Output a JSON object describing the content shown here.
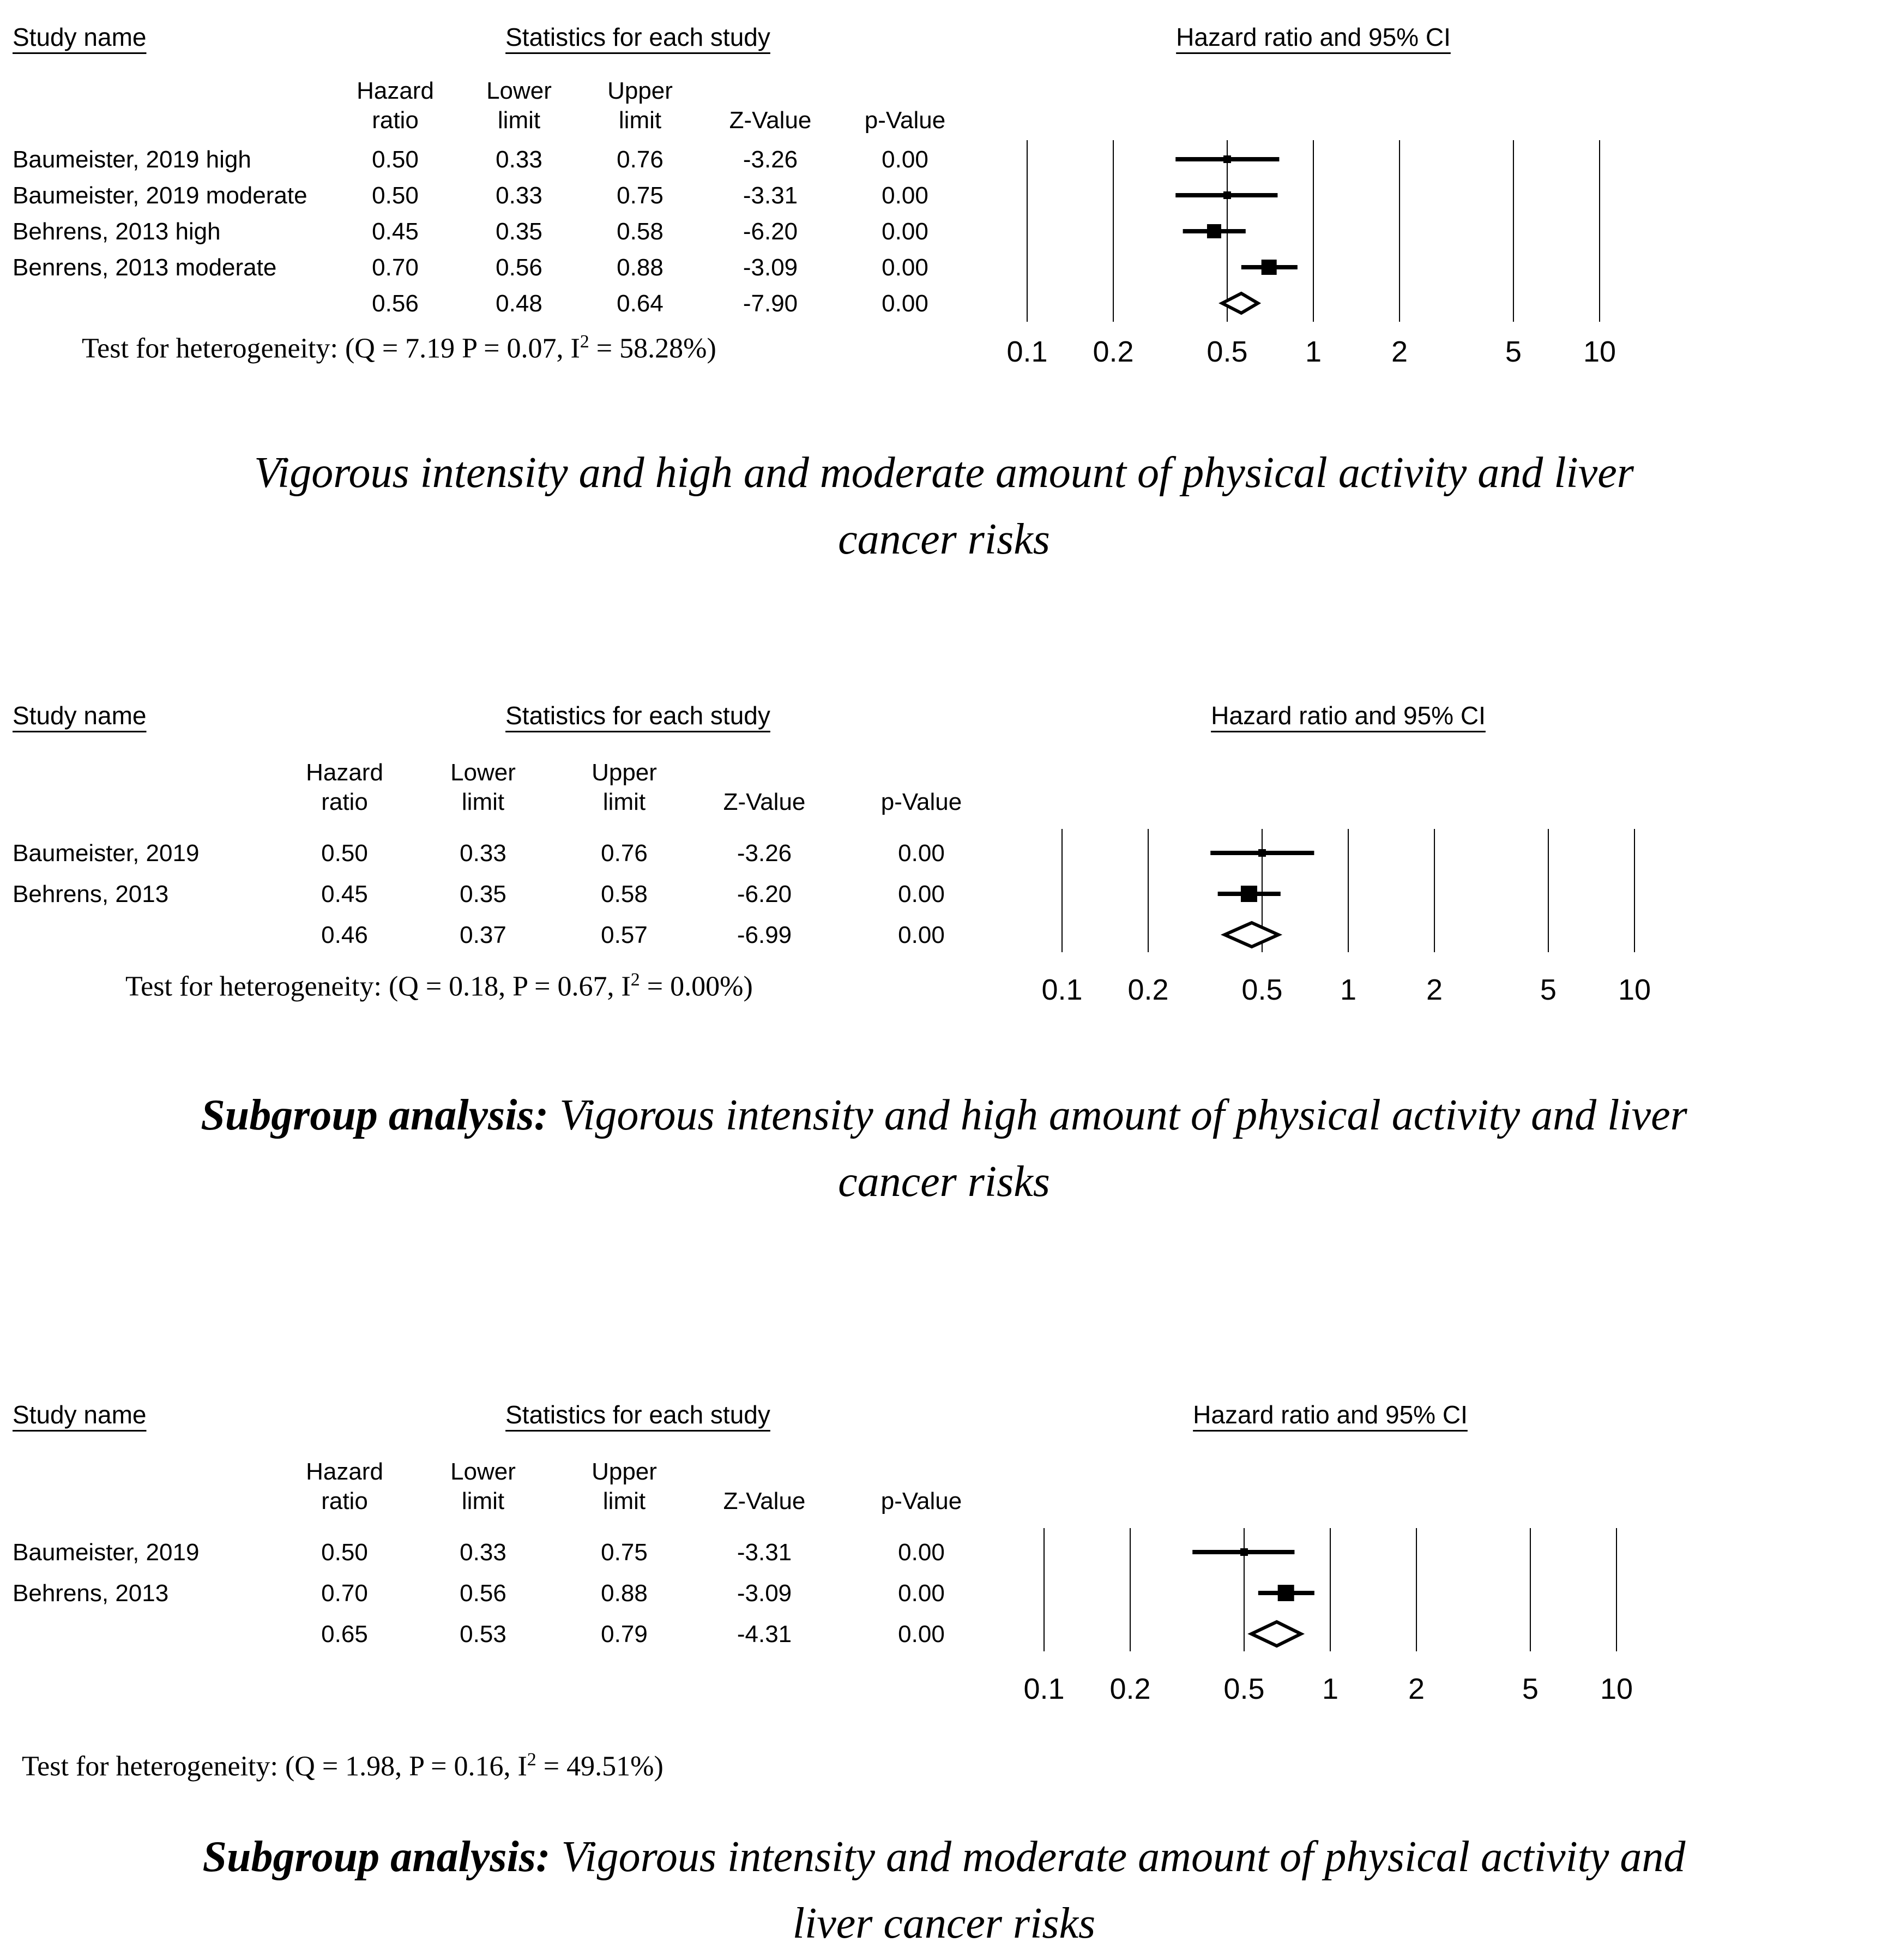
{
  "page": {
    "background": "#ffffff",
    "ink": "#000000"
  },
  "panels": [
    {
      "headers": {
        "study": "Study name",
        "stats": "Statistics for each study",
        "plot": "Hazard ratio and 95% CI"
      },
      "col_heads": [
        {
          "l1": "Hazard",
          "l2": "ratio"
        },
        {
          "l1": "Lower",
          "l2": "limit"
        },
        {
          "l1": "Upper",
          "l2": "limit"
        },
        {
          "l1": "",
          "l2": "Z-Value"
        },
        {
          "l1": "",
          "l2": "p-Value"
        }
      ],
      "rows": [
        [
          "Baumeister, 2019 high",
          "0.50",
          "0.33",
          "0.76",
          "-3.26",
          "0.00"
        ],
        [
          "Baumeister, 2019 moderate",
          "0.50",
          "0.33",
          "0.75",
          "-3.31",
          "0.00"
        ],
        [
          "Behrens, 2013 high",
          "0.45",
          "0.35",
          "0.58",
          "-6.20",
          "0.00"
        ],
        [
          "Benrens, 2013 moderate",
          "0.70",
          "0.56",
          "0.88",
          "-3.09",
          "0.00"
        ],
        [
          "",
          "0.56",
          "0.48",
          "0.64",
          "-7.90",
          "0.00"
        ]
      ],
      "het": {
        "prefix": "Test for heterogeneity: (Q = 7.19 P = 0.07, I",
        "sup": "2",
        "tail": " = 58.28%)"
      }
    },
    {
      "headers": {
        "study": "Study name",
        "stats": "Statistics for each study",
        "plot": "Hazard ratio and 95% CI"
      },
      "col_heads": [
        {
          "l1": "Hazard",
          "l2": "ratio"
        },
        {
          "l1": "Lower",
          "l2": "limit"
        },
        {
          "l1": "Upper",
          "l2": "limit"
        },
        {
          "l1": "",
          "l2": "Z-Value"
        },
        {
          "l1": "",
          "l2": "p-Value"
        }
      ],
      "rows": [
        [
          "Baumeister, 2019",
          "0.50",
          "0.33",
          "0.76",
          "-3.26",
          "0.00"
        ],
        [
          "Behrens, 2013",
          "0.45",
          "0.35",
          "0.58",
          "-6.20",
          "0.00"
        ],
        [
          "",
          "0.46",
          "0.37",
          "0.57",
          "-6.99",
          "0.00"
        ]
      ],
      "het": {
        "prefix": "Test for heterogeneity: (Q = 0.18, P = 0.67, I",
        "sup": "2",
        "tail": " = 0.00%)"
      }
    },
    {
      "headers": {
        "study": "Study name",
        "stats": "Statistics for each study",
        "plot": "Hazard ratio and 95% CI"
      },
      "col_heads": [
        {
          "l1": "Hazard",
          "l2": "ratio"
        },
        {
          "l1": "Lower",
          "l2": "limit"
        },
        {
          "l1": "Upper",
          "l2": "limit"
        },
        {
          "l1": "",
          "l2": "Z-Value"
        },
        {
          "l1": "",
          "l2": "p-Value"
        }
      ],
      "rows": [
        [
          "Baumeister, 2019",
          "0.50",
          "0.33",
          "0.75",
          "-3.31",
          "0.00"
        ],
        [
          "Behrens, 2013",
          "0.70",
          "0.56",
          "0.88",
          "-3.09",
          "0.00"
        ],
        [
          "",
          "0.65",
          "0.53",
          "0.79",
          "-4.31",
          "0.00"
        ]
      ],
      "het": {
        "prefix": "Test for heterogeneity: (Q = 1.98, P = 0.16, I",
        "sup": "2",
        "tail": " = 49.51%)"
      }
    }
  ],
  "captions": [
    {
      "bold": "",
      "line1": "Vigorous intensity and high and moderate amount of physical activity and liver",
      "line2": "cancer risks"
    },
    {
      "bold": "Subgroup analysis:",
      "line1": " Vigorous intensity and high amount of physical activity and liver",
      "line2": "cancer risks"
    },
    {
      "bold": "Subgroup analysis:",
      "line1": " Vigorous intensity and moderate amount of physical activity and",
      "line2": "liver cancer risks"
    }
  ],
  "chart_data": [
    {
      "type": "forest",
      "title": "Hazard ratio and 95% CI",
      "x_scale": "log10",
      "xlim": [
        0.1,
        10
      ],
      "x_ticks": [
        0.1,
        0.2,
        0.5,
        1,
        2,
        5,
        10
      ],
      "grid": true,
      "studies": [
        {
          "name": "Baumeister, 2019 high",
          "hr": 0.5,
          "lower": 0.33,
          "upper": 0.76,
          "z": -3.26,
          "p": 0.0,
          "marker": 14
        },
        {
          "name": "Baumeister, 2019 moderate",
          "hr": 0.5,
          "lower": 0.33,
          "upper": 0.75,
          "z": -3.31,
          "p": 0.0,
          "marker": 14
        },
        {
          "name": "Behrens, 2013 high",
          "hr": 0.45,
          "lower": 0.35,
          "upper": 0.58,
          "z": -6.2,
          "p": 0.0,
          "marker": 26
        },
        {
          "name": "Benrens, 2013 moderate",
          "hr": 0.7,
          "lower": 0.56,
          "upper": 0.88,
          "z": -3.09,
          "p": 0.0,
          "marker": 28
        }
      ],
      "pooled": {
        "hr": 0.56,
        "lower": 0.48,
        "upper": 0.64,
        "z": -7.9,
        "p": 0.0
      },
      "heterogeneity": {
        "Q": 7.19,
        "P": 0.07,
        "I2_pct": 58.28
      }
    },
    {
      "type": "forest",
      "title": "Hazard ratio and 95% CI",
      "x_scale": "log10",
      "xlim": [
        0.1,
        10
      ],
      "x_ticks": [
        0.1,
        0.2,
        0.5,
        1,
        2,
        5,
        10
      ],
      "grid": true,
      "studies": [
        {
          "name": "Baumeister, 2019",
          "hr": 0.5,
          "lower": 0.33,
          "upper": 0.76,
          "z": -3.26,
          "p": 0.0,
          "marker": 14
        },
        {
          "name": "Behrens, 2013",
          "hr": 0.45,
          "lower": 0.35,
          "upper": 0.58,
          "z": -6.2,
          "p": 0.0,
          "marker": 30
        }
      ],
      "pooled": {
        "hr": 0.46,
        "lower": 0.37,
        "upper": 0.57,
        "z": -6.99,
        "p": 0.0
      },
      "heterogeneity": {
        "Q": 0.18,
        "P": 0.67,
        "I2_pct": 0.0
      }
    },
    {
      "type": "forest",
      "title": "Hazard ratio and 95% CI",
      "x_scale": "log10",
      "xlim": [
        0.1,
        10
      ],
      "x_ticks": [
        0.1,
        0.2,
        0.5,
        1,
        2,
        5,
        10
      ],
      "grid": true,
      "studies": [
        {
          "name": "Baumeister, 2019",
          "hr": 0.5,
          "lower": 0.33,
          "upper": 0.75,
          "z": -3.31,
          "p": 0.0,
          "marker": 14
        },
        {
          "name": "Behrens, 2013",
          "hr": 0.7,
          "lower": 0.56,
          "upper": 0.88,
          "z": -3.09,
          "p": 0.0,
          "marker": 30
        }
      ],
      "pooled": {
        "hr": 0.65,
        "lower": 0.53,
        "upper": 0.79,
        "z": -4.31,
        "p": 0.0
      },
      "heterogeneity": {
        "Q": 1.98,
        "P": 0.16,
        "I2_pct": 49.51
      }
    }
  ]
}
